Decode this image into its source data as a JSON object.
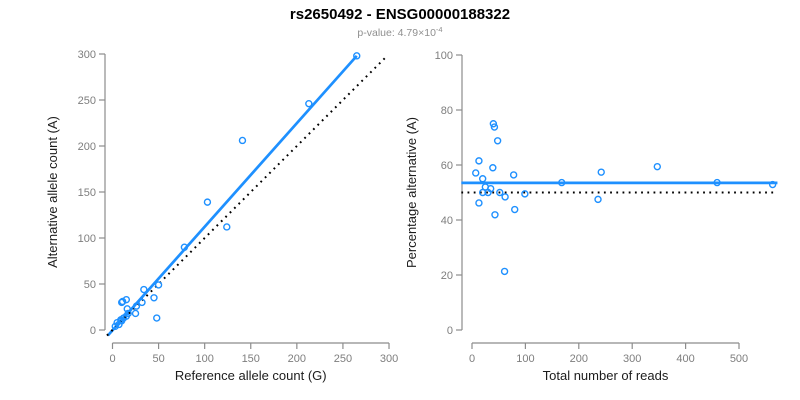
{
  "title": "rs2650492 - ENSG00000188322",
  "subtitle": {
    "label_and_value": "p-value: 4.79",
    "times_base": "×10",
    "exponent": "-4"
  },
  "colors": {
    "accent_blue": "#1E90FF",
    "reference_black": "#000000",
    "axis_gray": "#8c8c8c",
    "tick_label_gray": "#7e7e7e",
    "subtitle_gray": "#8f8f8f"
  },
  "chart_data": [
    {
      "type": "scatter",
      "name": "allele-counts-scatter",
      "xlabel": "Reference allele count (G)",
      "ylabel": "Alternative allele count (A)",
      "xlim": [
        0,
        300
      ],
      "ylim": [
        0,
        300
      ],
      "xticks": [
        0,
        50,
        100,
        150,
        200,
        250,
        300
      ],
      "yticks": [
        0,
        50,
        100,
        150,
        200,
        250,
        300
      ],
      "grid": false,
      "legend": "none",
      "points": [
        [
          3,
          4
        ],
        [
          5,
          8
        ],
        [
          7,
          6
        ],
        [
          9,
          11
        ],
        [
          10,
          10
        ],
        [
          12,
          13
        ],
        [
          15,
          15
        ],
        [
          10,
          30
        ],
        [
          11,
          31
        ],
        [
          15,
          33
        ],
        [
          16,
          23
        ],
        [
          17,
          18
        ],
        [
          25,
          18
        ],
        [
          26,
          26
        ],
        [
          32,
          30
        ],
        [
          34,
          44
        ],
        [
          45,
          35
        ],
        [
          48,
          13
        ],
        [
          50,
          49
        ],
        [
          78,
          90
        ],
        [
          103,
          139
        ],
        [
          124,
          112
        ],
        [
          141,
          206
        ],
        [
          213,
          246
        ],
        [
          265,
          298
        ]
      ],
      "lines": [
        {
          "name": "fit-line",
          "style": "solid",
          "color": "#1E90FF",
          "from": [
            -5,
            -6
          ],
          "to": [
            265,
            298
          ]
        },
        {
          "name": "identity-line",
          "style": "dotted",
          "color": "#000000",
          "from": [
            -6,
            -6
          ],
          "to": [
            298,
            298
          ]
        }
      ]
    },
    {
      "type": "scatter",
      "name": "percentage-vs-reads-scatter",
      "xlabel": "Total number of reads",
      "ylabel": "Percentage alternative (A)",
      "xlim": [
        0,
        500
      ],
      "ylim": [
        0,
        100
      ],
      "xticks": [
        0,
        100,
        200,
        300,
        400,
        500
      ],
      "yticks": [
        0,
        20,
        40,
        60,
        80,
        100
      ],
      "grid": false,
      "legend": "none",
      "points": [
        [
          7,
          57.1
        ],
        [
          13,
          61.5
        ],
        [
          13,
          46.2
        ],
        [
          20,
          55.0
        ],
        [
          20,
          50.0
        ],
        [
          25,
          52.0
        ],
        [
          30,
          50.0
        ],
        [
          40,
          75.0
        ],
        [
          42,
          73.8
        ],
        [
          48,
          68.8
        ],
        [
          39,
          59.0
        ],
        [
          35,
          51.4
        ],
        [
          43,
          41.9
        ],
        [
          52,
          50.0
        ],
        [
          62,
          48.4
        ],
        [
          78,
          56.4
        ],
        [
          80,
          43.8
        ],
        [
          61,
          21.3
        ],
        [
          99,
          49.5
        ],
        [
          168,
          53.6
        ],
        [
          242,
          57.4
        ],
        [
          236,
          47.5
        ],
        [
          347,
          59.4
        ],
        [
          459,
          53.6
        ],
        [
          563,
          52.9
        ]
      ],
      "lines": [
        {
          "name": "mean-percentage-line",
          "style": "solid",
          "color": "#1E90FF",
          "from": [
            -20,
            53.5
          ],
          "to": [
            572,
            53.5
          ]
        },
        {
          "name": "expected-50pct-line",
          "style": "dotted",
          "color": "#000000",
          "from": [
            -20,
            50
          ],
          "to": [
            572,
            50
          ]
        }
      ]
    }
  ]
}
